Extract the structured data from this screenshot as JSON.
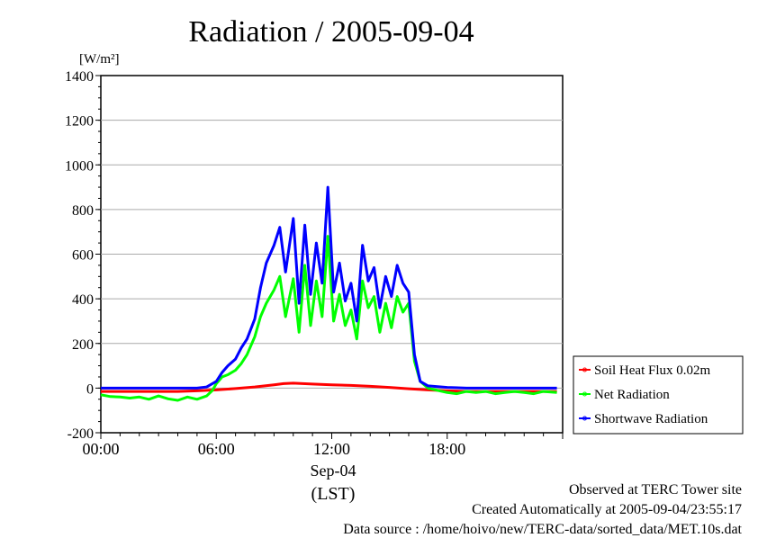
{
  "chart_data": {
    "type": "line",
    "title": "Radiation / 2005-09-04",
    "ylabel": "[W/m²]",
    "xlabel_date": "Sep-04",
    "xlabel_tz": "(LST)",
    "ylim": [
      -200,
      1400
    ],
    "yticks": [
      -200,
      0,
      200,
      400,
      600,
      800,
      1000,
      1200,
      1400
    ],
    "ytick_labels": [
      "-200",
      "0",
      "200",
      "400",
      "600",
      "800",
      "1000",
      "1200",
      "1400"
    ],
    "xlim": [
      0,
      24
    ],
    "xticks": [
      0,
      6,
      12,
      18
    ],
    "xtick_labels": [
      "00:00",
      "06:00",
      "12:00",
      "18:00"
    ],
    "grid": true,
    "legend_position": "right",
    "series": [
      {
        "name": "Soil Heat Flux 0.02m",
        "color": "#ff0000",
        "x": [
          0,
          2,
          4,
          5,
          6,
          7,
          8,
          9,
          9.5,
          10,
          10.5,
          11,
          12,
          13,
          14,
          15,
          16,
          17,
          18,
          19,
          20,
          22,
          23.7
        ],
        "y": [
          -15,
          -15,
          -15,
          -12,
          -8,
          -2,
          5,
          15,
          20,
          22,
          20,
          18,
          15,
          12,
          8,
          3,
          -3,
          -8,
          -12,
          -15,
          -15,
          -15,
          -15
        ]
      },
      {
        "name": "Net Radiation",
        "color": "#00ff00",
        "x": [
          0,
          0.5,
          1,
          1.5,
          2,
          2.5,
          3,
          3.5,
          4,
          4.5,
          5,
          5.5,
          5.8,
          6,
          6.3,
          6.6,
          7,
          7.3,
          7.6,
          8,
          8.3,
          8.6,
          9,
          9.3,
          9.6,
          10,
          10.3,
          10.6,
          10.9,
          11.2,
          11.5,
          11.8,
          12.1,
          12.4,
          12.7,
          13,
          13.3,
          13.6,
          13.9,
          14.2,
          14.5,
          14.8,
          15.1,
          15.4,
          15.7,
          16,
          16.3,
          16.6,
          17,
          17.5,
          18,
          18.5,
          19,
          19.5,
          20,
          20.5,
          21,
          21.5,
          22,
          22.5,
          23,
          23.7
        ],
        "y": [
          -30,
          -38,
          -40,
          -45,
          -40,
          -50,
          -35,
          -48,
          -55,
          -40,
          -50,
          -35,
          -10,
          20,
          50,
          60,
          80,
          110,
          150,
          230,
          320,
          380,
          440,
          500,
          320,
          490,
          250,
          550,
          280,
          480,
          320,
          680,
          300,
          420,
          280,
          350,
          220,
          480,
          360,
          410,
          250,
          380,
          270,
          410,
          340,
          380,
          120,
          30,
          0,
          -10,
          -20,
          -25,
          -15,
          -20,
          -15,
          -25,
          -20,
          -15,
          -20,
          -25,
          -15,
          -20
        ]
      },
      {
        "name": "Shortwave Radiation",
        "color": "#0000ff",
        "x": [
          0,
          1,
          2,
          3,
          4,
          5,
          5.5,
          6,
          6.3,
          6.6,
          7,
          7.3,
          7.6,
          8,
          8.3,
          8.6,
          9,
          9.3,
          9.6,
          10,
          10.3,
          10.6,
          10.9,
          11.2,
          11.5,
          11.8,
          12.1,
          12.4,
          12.7,
          13,
          13.3,
          13.6,
          13.9,
          14.2,
          14.5,
          14.8,
          15.1,
          15.4,
          15.7,
          16,
          16.3,
          16.6,
          17,
          18,
          19,
          20,
          21,
          22,
          23,
          23.7
        ],
        "y": [
          0,
          0,
          0,
          0,
          0,
          0,
          5,
          30,
          70,
          100,
          130,
          180,
          220,
          310,
          450,
          560,
          640,
          720,
          520,
          760,
          380,
          730,
          420,
          650,
          470,
          900,
          430,
          560,
          390,
          470,
          300,
          640,
          480,
          540,
          360,
          500,
          410,
          550,
          470,
          430,
          150,
          30,
          10,
          3,
          0,
          0,
          0,
          0,
          0,
          0
        ]
      }
    ]
  },
  "footer": {
    "line1": "Observed at TERC Tower site",
    "line2": "Created Automatically at 2005-09-04/23:55:17",
    "line3": "Data source : /home/hoivo/new/TERC-data/sorted_data/MET.10s.dat"
  }
}
